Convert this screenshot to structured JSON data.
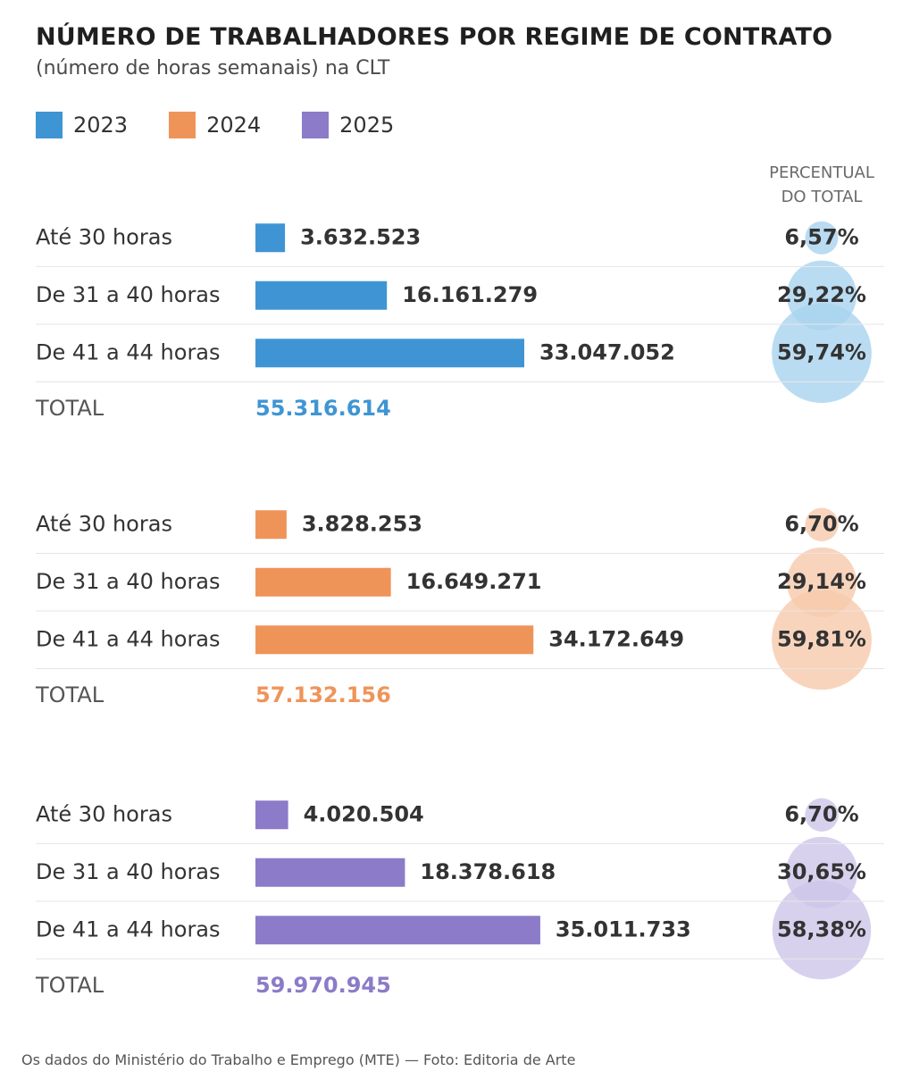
{
  "title": "NÚMERO DE TRABALHADORES POR REGIME DE CONTRATO",
  "subtitle": "(número de horas semanais) na CLT",
  "legend": [
    {
      "label": "2023",
      "color": "#3f95d3"
    },
    {
      "label": "2024",
      "color": "#ef9459"
    },
    {
      "label": "2025",
      "color": "#8b7bc8"
    }
  ],
  "percent_header": [
    "PERCENTUAL",
    "DO TOTAL"
  ],
  "caption": "Os dados do Ministério do Trabalho e Emprego (MTE) — Foto: Editoria de Arte",
  "chart_data": {
    "type": "bar",
    "orientation": "horizontal",
    "categories": [
      "Até 30 horas",
      "De 31 a 40 horas",
      "De 41 a 44 horas"
    ],
    "total_label": "TOTAL",
    "series": [
      {
        "name": "2023",
        "color": "#3f95d3",
        "bubble_color": "#a9d3ef",
        "values": [
          3632523,
          16161279,
          33047052
        ],
        "value_labels": [
          "3.632.523",
          "16.161.279",
          "33.047.052"
        ],
        "percents": [
          6.57,
          29.22,
          59.74
        ],
        "percent_labels": [
          "6,57%",
          "29,22%",
          "59,74%"
        ],
        "total": 55316614,
        "total_label": "55.316.614"
      },
      {
        "name": "2024",
        "color": "#ef9459",
        "bubble_color": "#f7c9ab",
        "values": [
          3828253,
          16649271,
          34172649
        ],
        "value_labels": [
          "3.828.253",
          "16.649.271",
          "34.172.649"
        ],
        "percents": [
          6.7,
          29.14,
          59.81
        ],
        "percent_labels": [
          "6,70%",
          "29,14%",
          "59,81%"
        ],
        "total": 57132156,
        "total_label": "57.132.156"
      },
      {
        "name": "2025",
        "color": "#8b7bc8",
        "bubble_color": "#cdc6ea",
        "values": [
          4020504,
          18378618,
          35011733
        ],
        "value_labels": [
          "4.020.504",
          "18.378.618",
          "35.011.733"
        ],
        "percents": [
          6.7,
          30.65,
          58.38
        ],
        "percent_labels": [
          "6,70%",
          "30,65%",
          "58,38%"
        ],
        "total": 59970945,
        "total_label": "59.970.945"
      }
    ]
  }
}
